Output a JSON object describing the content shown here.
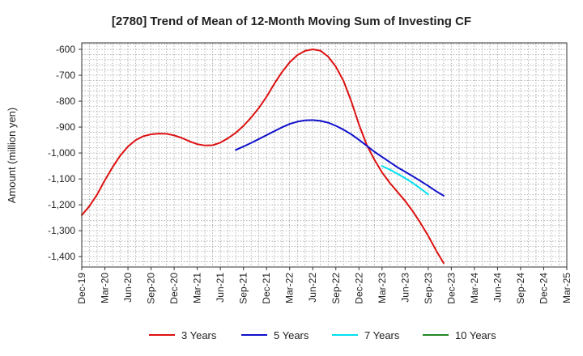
{
  "chart_data": {
    "type": "line",
    "title": "[2780]  Trend of Mean of 12-Month Moving Sum of Investing CF",
    "xlabel": "",
    "ylabel": "Amount (million yen)",
    "ylim": [
      -1440,
      -575
    ],
    "y_ticks": [
      -600,
      -700,
      -800,
      -900,
      -1000,
      -1100,
      -1200,
      -1300,
      -1400
    ],
    "y_tick_labels": [
      "-600",
      "-700",
      "-800",
      "-900",
      "-1,000",
      "-1,100",
      "-1,200",
      "-1,300",
      "-1,400"
    ],
    "x_tick_labels": [
      "Dec-19",
      "Mar-20",
      "Jun-20",
      "Sep-20",
      "Dec-20",
      "Mar-21",
      "Jun-21",
      "Sep-21",
      "Dec-21",
      "Mar-22",
      "Jun-22",
      "Sep-22",
      "Dec-22",
      "Mar-23",
      "Jun-23",
      "Sep-23",
      "Dec-23",
      "Mar-24",
      "Jun-24",
      "Sep-24",
      "Dec-24",
      "Mar-25"
    ],
    "grid": true,
    "legend_position": "bottom",
    "series": [
      {
        "name": "3 Years",
        "color": "#dd1111",
        "start_month_index": 0,
        "values": [
          -1240,
          -1205,
          -1160,
          -1105,
          -1055,
          -1010,
          -975,
          -950,
          -935,
          -928,
          -925,
          -926,
          -932,
          -942,
          -955,
          -966,
          -971,
          -970,
          -960,
          -943,
          -922,
          -895,
          -863,
          -826,
          -783,
          -733,
          -688,
          -650,
          -622,
          -606,
          -600,
          -605,
          -628,
          -667,
          -722,
          -800,
          -890,
          -968,
          -1025,
          -1075,
          -1115,
          -1150,
          -1185,
          -1225,
          -1270,
          -1320,
          -1375,
          -1425
        ]
      },
      {
        "name": "5 Years",
        "color": "#1010cc",
        "start_month_index": 20,
        "values": [
          -988,
          -975,
          -961,
          -946,
          -931,
          -916,
          -901,
          -888,
          -879,
          -874,
          -873,
          -876,
          -883,
          -895,
          -910,
          -928,
          -949,
          -972,
          -995,
          -1015,
          -1035,
          -1055,
          -1072,
          -1090,
          -1108,
          -1127,
          -1147,
          -1165
        ]
      },
      {
        "name": "7 Years",
        "color": "#00e0ee",
        "start_month_index": 39,
        "values": [
          -1050,
          -1064,
          -1080,
          -1097,
          -1116,
          -1137,
          -1160
        ]
      },
      {
        "name": "10 Years",
        "color": "#228822",
        "start_month_index": 0,
        "values": []
      }
    ]
  }
}
